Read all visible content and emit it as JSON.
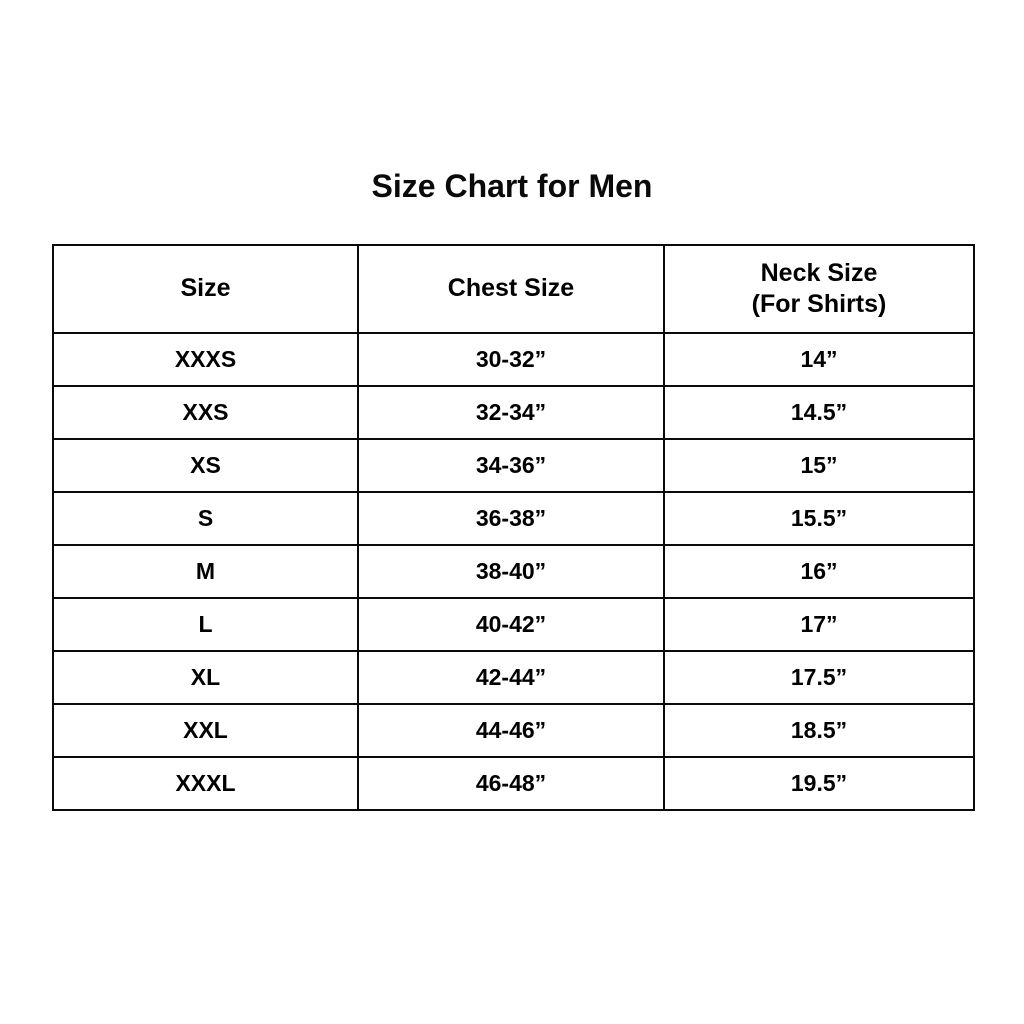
{
  "page": {
    "background_color": "#ffffff",
    "text_color": "#0a0a0a",
    "border_color": "#0a0a0a"
  },
  "title": "Size Chart for Men",
  "table": {
    "headers": [
      {
        "line1": "Size",
        "line2": ""
      },
      {
        "line1": "Chest Size",
        "line2": ""
      },
      {
        "line1": "Neck Size",
        "line2": "(For Shirts)"
      }
    ],
    "rows": [
      {
        "size": "XXXS",
        "chest": "30-32”",
        "neck": "14”"
      },
      {
        "size": "XXS",
        "chest": "32-34”",
        "neck": "14.5”"
      },
      {
        "size": "XS",
        "chest": "34-36”",
        "neck": "15”"
      },
      {
        "size": "S",
        "chest": "36-38”",
        "neck": "15.5”"
      },
      {
        "size": "M",
        "chest": "38-40”",
        "neck": "16”"
      },
      {
        "size": "L",
        "chest": "40-42”",
        "neck": "17”"
      },
      {
        "size": "XL",
        "chest": "42-44”",
        "neck": "17.5”"
      },
      {
        "size": "XXL",
        "chest": "44-46”",
        "neck": "18.5”"
      },
      {
        "size": "XXXL",
        "chest": "46-48”",
        "neck": "19.5”"
      }
    ]
  },
  "chart_data": {
    "type": "table",
    "title": "Size Chart for Men",
    "columns": [
      "Size",
      "Chest Size",
      "Neck Size (For Shirts)"
    ],
    "rows": [
      [
        "XXXS",
        "30-32”",
        "14”"
      ],
      [
        "XXS",
        "32-34”",
        "14.5”"
      ],
      [
        "XS",
        "34-36”",
        "15”"
      ],
      [
        "S",
        "36-38”",
        "15.5”"
      ],
      [
        "M",
        "38-40”",
        "16”"
      ],
      [
        "L",
        "40-42”",
        "17”"
      ],
      [
        "XL",
        "42-44”",
        "17.5”"
      ],
      [
        "XXL",
        "44-46”",
        "18.5”"
      ],
      [
        "XXXL",
        "46-48”",
        "19.5”"
      ]
    ]
  }
}
